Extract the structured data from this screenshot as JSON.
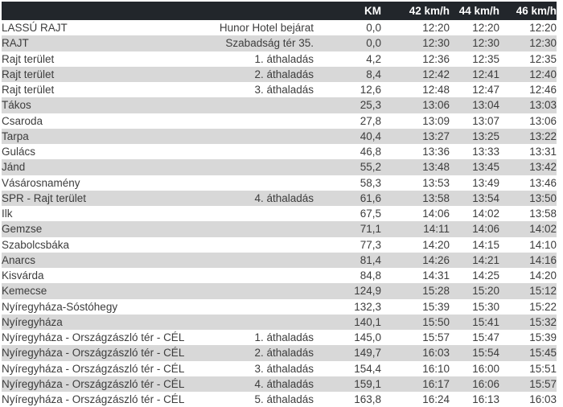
{
  "colors": {
    "header_bg": "#22262b",
    "header_text": "#ffffff",
    "stripe": "#d8d8d8",
    "row_text": "#3d3d3d"
  },
  "table": {
    "header": {
      "location": "",
      "detail": "",
      "km": "KM",
      "speed42": "42 km/h",
      "speed44": "44 km/h",
      "speed46": "46 km/h"
    },
    "rows": [
      {
        "location": "LASSÚ RAJT",
        "detail": "Hunor Hotel bejárat",
        "km": "0,0",
        "t42": "12:20",
        "t44": "12:20",
        "t46": "12:20"
      },
      {
        "location": "RAJT",
        "detail": "Szabadság tér 35.",
        "km": "0,0",
        "t42": "12:30",
        "t44": "12:30",
        "t46": "12:30"
      },
      {
        "location": "Rajt terület",
        "detail": "1. áthaladás",
        "km": "4,2",
        "t42": "12:36",
        "t44": "12:35",
        "t46": "12:35"
      },
      {
        "location": "Rajt terület",
        "detail": "2. áthaladás",
        "km": "8,4",
        "t42": "12:42",
        "t44": "12:41",
        "t46": "12:40"
      },
      {
        "location": "Rajt terület",
        "detail": "3. áthaladás",
        "km": "12,6",
        "t42": "12:48",
        "t44": "12:47",
        "t46": "12:46"
      },
      {
        "location": "Tákos",
        "detail": "",
        "km": "25,3",
        "t42": "13:06",
        "t44": "13:04",
        "t46": "13:03"
      },
      {
        "location": "Csaroda",
        "detail": "",
        "km": "27,8",
        "t42": "13:09",
        "t44": "13:07",
        "t46": "13:06"
      },
      {
        "location": "Tarpa",
        "detail": "",
        "km": "40,4",
        "t42": "13:27",
        "t44": "13:25",
        "t46": "13:22"
      },
      {
        "location": "Gulács",
        "detail": "",
        "km": "46,8",
        "t42": "13:36",
        "t44": "13:33",
        "t46": "13:31"
      },
      {
        "location": "Jánd",
        "detail": "",
        "km": "55,2",
        "t42": "13:48",
        "t44": "13:45",
        "t46": "13:42"
      },
      {
        "location": "Vásárosnamény",
        "detail": "",
        "km": "58,3",
        "t42": "13:53",
        "t44": "13:49",
        "t46": "13:46"
      },
      {
        "location": "SPR - Rajt terület",
        "detail": "4. áthaladás",
        "km": "61,6",
        "t42": "13:58",
        "t44": "13:54",
        "t46": "13:50"
      },
      {
        "location": "Ilk",
        "detail": "",
        "km": "67,5",
        "t42": "14:06",
        "t44": "14:02",
        "t46": "13:58"
      },
      {
        "location": "Gemzse",
        "detail": "",
        "km": "71,1",
        "t42": "14:11",
        "t44": "14:06",
        "t46": "14:02"
      },
      {
        "location": "Szabolcsbáka",
        "detail": "",
        "km": "77,3",
        "t42": "14:20",
        "t44": "14:15",
        "t46": "14:10"
      },
      {
        "location": "Anarcs",
        "detail": "",
        "km": "81,4",
        "t42": "14:26",
        "t44": "14:21",
        "t46": "14:16"
      },
      {
        "location": "Kisvárda",
        "detail": "",
        "km": "84,8",
        "t42": "14:31",
        "t44": "14:25",
        "t46": "14:20"
      },
      {
        "location": "Kemecse",
        "detail": "",
        "km": "124,9",
        "t42": "15:28",
        "t44": "15:20",
        "t46": "15:12"
      },
      {
        "location": "Nyíregyháza-Sóstóhegy",
        "detail": "",
        "km": "132,3",
        "t42": "15:39",
        "t44": "15:30",
        "t46": "15:22"
      },
      {
        "location": "Nyíregyháza",
        "detail": "",
        "km": "140,1",
        "t42": "15:50",
        "t44": "15:41",
        "t46": "15:32"
      },
      {
        "location": "Nyíregyháza - Országzászló tér - CÉL",
        "detail": "1. áthaladás",
        "km": "145,0",
        "t42": "15:57",
        "t44": "15:47",
        "t46": "15:39"
      },
      {
        "location": "Nyíregyháza - Országzászló tér - CÉL",
        "detail": "2. áthaladás",
        "km": "149,7",
        "t42": "16:03",
        "t44": "15:54",
        "t46": "15:45"
      },
      {
        "location": "Nyíregyháza - Országzászló tér - CÉL",
        "detail": "3. áthaladás",
        "km": "154,4",
        "t42": "16:10",
        "t44": "16:00",
        "t46": "15:51"
      },
      {
        "location": "Nyíregyháza - Országzászló tér - CÉL",
        "detail": "4. áthaladás",
        "km": "159,1",
        "t42": "16:17",
        "t44": "16:06",
        "t46": "15:57"
      },
      {
        "location": "Nyíregyháza - Országzászló tér - CÉL",
        "detail": "5. áthaladás",
        "km": "163,8",
        "t42": "16:24",
        "t44": "16:13",
        "t46": "16:03"
      }
    ]
  }
}
